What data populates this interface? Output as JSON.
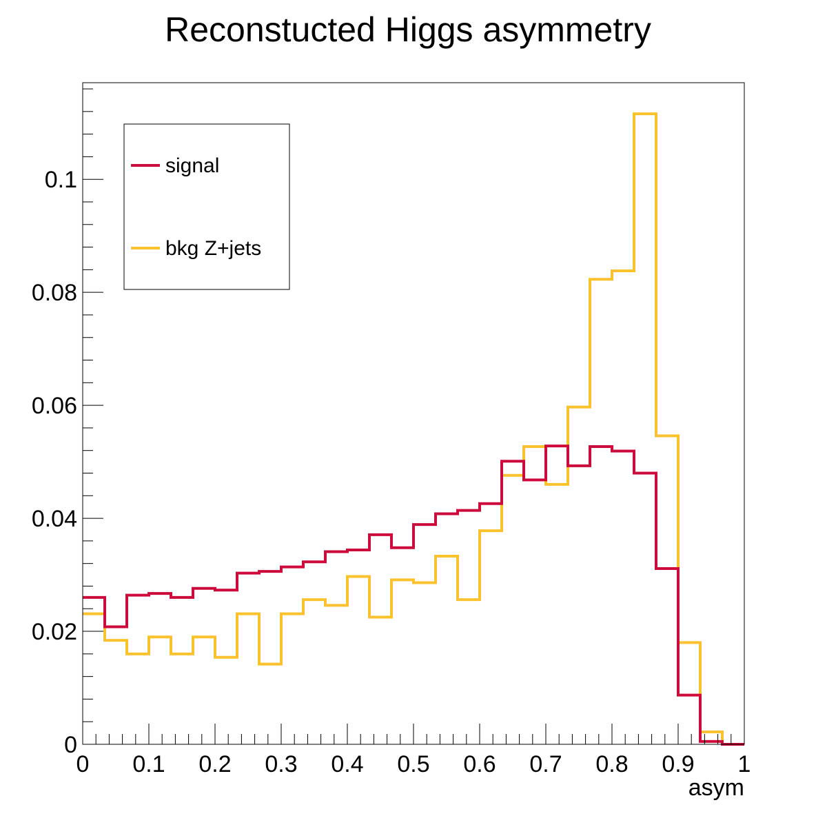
{
  "chart_data": {
    "type": "line",
    "style": "step-histogram",
    "title": "Reconstucted Higgs asymmetry",
    "xlabel": "asym",
    "ylabel": "",
    "xlim": [
      0,
      1
    ],
    "ylim": [
      0,
      0.1171
    ],
    "bins": 30,
    "x_tick_labels": [
      "0",
      "0.1",
      "0.2",
      "0.3",
      "0.4",
      "0.5",
      "0.6",
      "0.7",
      "0.8",
      "0.9",
      "1"
    ],
    "y_tick_labels": [
      "0",
      "0.02",
      "0.04",
      "0.06",
      "0.08",
      "0.1"
    ],
    "y_ticks": [
      0,
      0.02,
      0.04,
      0.06,
      0.08,
      0.1
    ],
    "grid": false,
    "legend_position": "top-left",
    "series": [
      {
        "name": "signal",
        "color": "#cc0a3c",
        "values": [
          0.026,
          0.0208,
          0.0264,
          0.0267,
          0.026,
          0.0276,
          0.0273,
          0.0303,
          0.0306,
          0.0314,
          0.0323,
          0.0341,
          0.0344,
          0.0371,
          0.0348,
          0.0389,
          0.0408,
          0.0414,
          0.0426,
          0.0501,
          0.0468,
          0.0528,
          0.0493,
          0.0527,
          0.0519,
          0.048,
          0.0311,
          0.0087,
          0.0005,
          0.0
        ]
      },
      {
        "name": "bkg Z+jets",
        "color": "#f9c22e",
        "values": [
          0.0231,
          0.0184,
          0.016,
          0.019,
          0.016,
          0.019,
          0.0154,
          0.0231,
          0.0142,
          0.0231,
          0.0256,
          0.0246,
          0.0297,
          0.0225,
          0.0291,
          0.0286,
          0.0333,
          0.0256,
          0.0378,
          0.0476,
          0.0527,
          0.046,
          0.0597,
          0.0823,
          0.0838,
          0.1116,
          0.0546,
          0.018,
          0.0022,
          0.0
        ]
      }
    ]
  }
}
